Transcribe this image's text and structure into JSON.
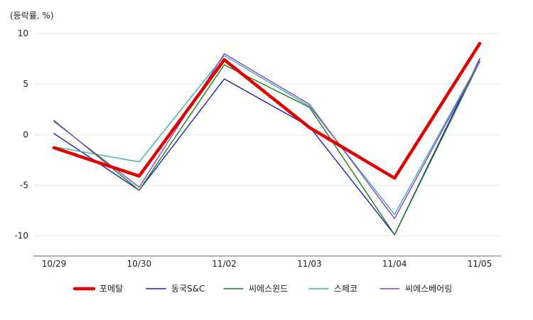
{
  "chart_data": {
    "type": "line",
    "ylabel": "(등락률, %)",
    "categories": [
      "10/29",
      "10/30",
      "11/02",
      "11/03",
      "11/04",
      "11/05"
    ],
    "ylim": [
      -12,
      10
    ],
    "yticks": [
      10,
      5,
      0,
      -5,
      -10
    ],
    "grid": true,
    "legend_position": "bottom",
    "series": [
      {
        "name": "동국S&C",
        "color": "#1f1fb8",
        "values": [
          0.1,
          -5.5,
          5.5,
          0.8,
          -9.9,
          7.5
        ]
      },
      {
        "name": "씨에스윈드",
        "color": "#1a7f1a",
        "values": [
          1.4,
          -5.5,
          6.9,
          2.7,
          -9.9,
          7.2
        ]
      },
      {
        "name": "스페코",
        "color": "#3aafaf",
        "values": [
          -1.2,
          -2.7,
          7.8,
          2.8,
          -7.9,
          7.3
        ]
      },
      {
        "name": "씨에스베어링",
        "color": "#8a44cc",
        "values": [
          1.3,
          -5.2,
          8.0,
          3.0,
          -8.3,
          7.2
        ]
      },
      {
        "name": "포메탈",
        "color": "#e00000",
        "values": [
          -1.3,
          -4.1,
          7.4,
          0.7,
          -4.3,
          9.0
        ]
      }
    ],
    "legend_order": [
      "포메탈",
      "동국S&C",
      "씨에스윈드",
      "스페코",
      "씨에스베어링"
    ]
  }
}
